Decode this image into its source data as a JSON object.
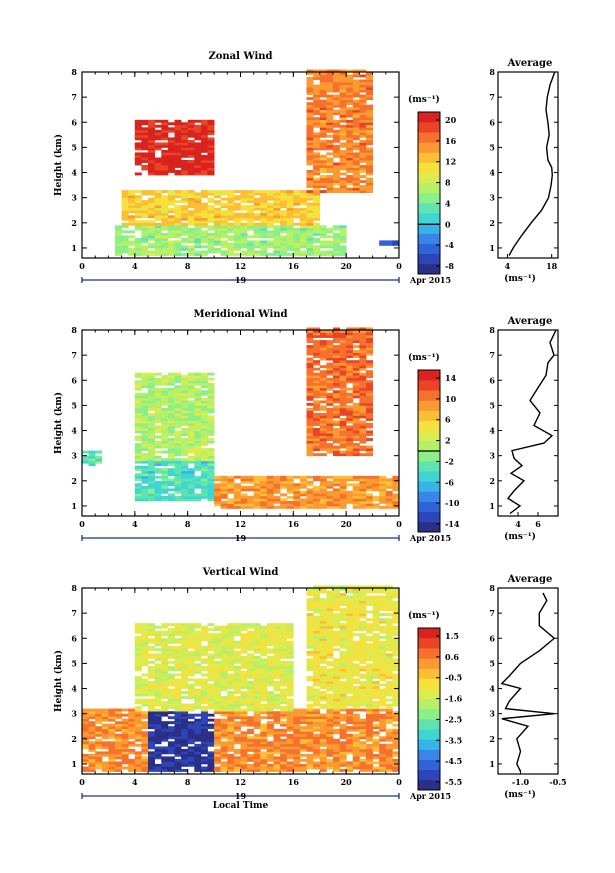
{
  "figure": {
    "date_label": "Apr 2015",
    "day_label": "19",
    "xlabel": "Local Time",
    "ylabel": "Height (km)",
    "unit": "(ms⁻¹)",
    "avg_title": "Average",
    "avg_unit": "(ms⁻¹)",
    "colormap": [
      "#2b2f86",
      "#2c45b9",
      "#2f63d8",
      "#3a86e8",
      "#38b3e8",
      "#3fd6d2",
      "#5fe3b0",
      "#8aef88",
      "#b5f068",
      "#dceb50",
      "#f6e03c",
      "#fbbe34",
      "#fb9a31",
      "#f6712d",
      "#ea4426",
      "#d9231f"
    ]
  },
  "chart_data": [
    {
      "type": "heatmap",
      "title": "Zonal Wind",
      "x_ticks": [
        "0",
        "4",
        "8",
        "12",
        "16",
        "20",
        "0"
      ],
      "xlim": [
        0,
        24
      ],
      "y_ticks": [
        "1",
        "2",
        "3",
        "4",
        "5",
        "6",
        "7",
        "8"
      ],
      "ylim": [
        0.6,
        8
      ],
      "colorbar_ticks": [
        "20",
        "16",
        "12",
        "8",
        "4",
        "0",
        "-4",
        "-8"
      ],
      "clim": [
        -10,
        22
      ],
      "zero_contour": true,
      "features": [
        {
          "x0": 4.0,
          "x1": 10.0,
          "y0": 3.9,
          "y1": 6.0,
          "value": 21
        },
        {
          "x0": 17.0,
          "x1": 22.0,
          "y0": 3.2,
          "y1": 8.0,
          "value": 16
        },
        {
          "x0": 22.5,
          "x1": 24.0,
          "y0": 1.0,
          "y1": 1.3,
          "value": -6
        },
        {
          "x0": 2.5,
          "x1": 20.0,
          "y0": 0.7,
          "y1": 1.9,
          "value": 6
        },
        {
          "x0": 3.0,
          "x1": 18.0,
          "y0": 1.9,
          "y1": 3.3,
          "value": 12
        }
      ],
      "average_profile": {
        "x_ticks": [
          "4",
          "18"
        ],
        "xlim": [
          1,
          20
        ],
        "height": [
          0.7,
          1.0,
          1.5,
          2.0,
          2.5,
          3.0,
          3.5,
          3.9,
          4.2,
          4.5,
          5.0,
          5.5,
          6.0,
          6.5,
          7.0,
          7.5,
          8.0
        ],
        "value": [
          4.5,
          5.8,
          8.5,
          11.5,
          14.8,
          17.0,
          17.8,
          18.2,
          18.0,
          16.8,
          16.4,
          17.2,
          16.8,
          16.2,
          16.6,
          17.5,
          19.0
        ]
      }
    },
    {
      "type": "heatmap",
      "title": "Meridional Wind",
      "x_ticks": [
        "0",
        "4",
        "8",
        "12",
        "16",
        "20",
        "0"
      ],
      "xlim": [
        0,
        24
      ],
      "y_ticks": [
        "1",
        "2",
        "3",
        "4",
        "5",
        "6",
        "7",
        "8"
      ],
      "ylim": [
        0.6,
        8
      ],
      "colorbar_ticks": [
        "14",
        "10",
        "6",
        "2",
        "-2",
        "-6",
        "-10",
        "-14"
      ],
      "clim": [
        -16,
        16
      ],
      "zero_contour": true,
      "features": [
        {
          "x0": 4.0,
          "x1": 10.0,
          "y0": 1.2,
          "y1": 2.8,
          "value": -4
        },
        {
          "x0": 4.0,
          "x1": 10.0,
          "y0": 2.8,
          "y1": 6.2,
          "value": 1
        },
        {
          "x0": 17.0,
          "x1": 22.0,
          "y0": 3.0,
          "y1": 8.0,
          "value": 11
        },
        {
          "x0": 0.0,
          "x1": 1.5,
          "y0": 2.6,
          "y1": 3.2,
          "value": -3
        },
        {
          "x0": 10.0,
          "x1": 24.0,
          "y0": 0.8,
          "y1": 2.2,
          "value": 9
        }
      ],
      "average_profile": {
        "x_ticks": [
          "4",
          "6"
        ],
        "xlim": [
          2,
          8
        ],
        "height": [
          0.7,
          1.0,
          1.3,
          1.6,
          2.0,
          2.3,
          2.6,
          2.9,
          3.2,
          3.5,
          3.8,
          4.2,
          4.7,
          5.2,
          5.7,
          6.2,
          6.7,
          7.0,
          7.5,
          8.0
        ],
        "value": [
          3.2,
          4.2,
          3.0,
          3.6,
          4.6,
          3.3,
          4.4,
          3.6,
          3.4,
          6.6,
          7.4,
          5.6,
          6.2,
          5.2,
          6.0,
          6.8,
          7.0,
          7.6,
          7.2,
          7.8
        ]
      }
    },
    {
      "type": "heatmap",
      "title": "Vertical Wind",
      "x_ticks": [
        "0",
        "4",
        "8",
        "12",
        "16",
        "20",
        "0"
      ],
      "xlim": [
        0,
        24
      ],
      "y_ticks": [
        "1",
        "2",
        "3",
        "4",
        "5",
        "6",
        "7",
        "8"
      ],
      "ylim": [
        0.6,
        8
      ],
      "colorbar_ticks": [
        "1.5",
        "0.6",
        "-0.5",
        "-1.6",
        "-2.5",
        "-3.5",
        "-4.5",
        "-5.5"
      ],
      "clim": [
        -6,
        2
      ],
      "zero_contour": false,
      "features": [
        {
          "x0": 5.0,
          "x1": 10.0,
          "y0": 0.7,
          "y1": 3.1,
          "value": -5.6
        },
        {
          "x0": 4.0,
          "x1": 16.0,
          "y0": 3.1,
          "y1": 6.5,
          "value": -1.2
        },
        {
          "x0": 17.0,
          "x1": 24.0,
          "y0": 3.2,
          "y1": 8.0,
          "value": -1.0
        },
        {
          "x0": 0.0,
          "x1": 24.0,
          "y0": 0.7,
          "y1": 3.2,
          "value": 0.4
        }
      ],
      "average_profile": {
        "x_ticks": [
          "-1.0",
          "-0.5"
        ],
        "xlim": [
          -1.3,
          -0.5
        ],
        "height": [
          0.7,
          1.0,
          1.5,
          2.0,
          2.5,
          2.8,
          3.0,
          3.2,
          3.5,
          4.0,
          4.2,
          4.5,
          5.0,
          5.5,
          6.0,
          6.5,
          7.0,
          7.5,
          7.8
        ],
        "value": [
          -1.0,
          -1.05,
          -1.0,
          -1.05,
          -0.9,
          -1.25,
          -0.55,
          -1.2,
          -1.15,
          -1.0,
          -1.25,
          -1.15,
          -1.0,
          -0.75,
          -0.55,
          -0.75,
          -0.75,
          -0.65,
          -0.7
        ]
      }
    }
  ]
}
